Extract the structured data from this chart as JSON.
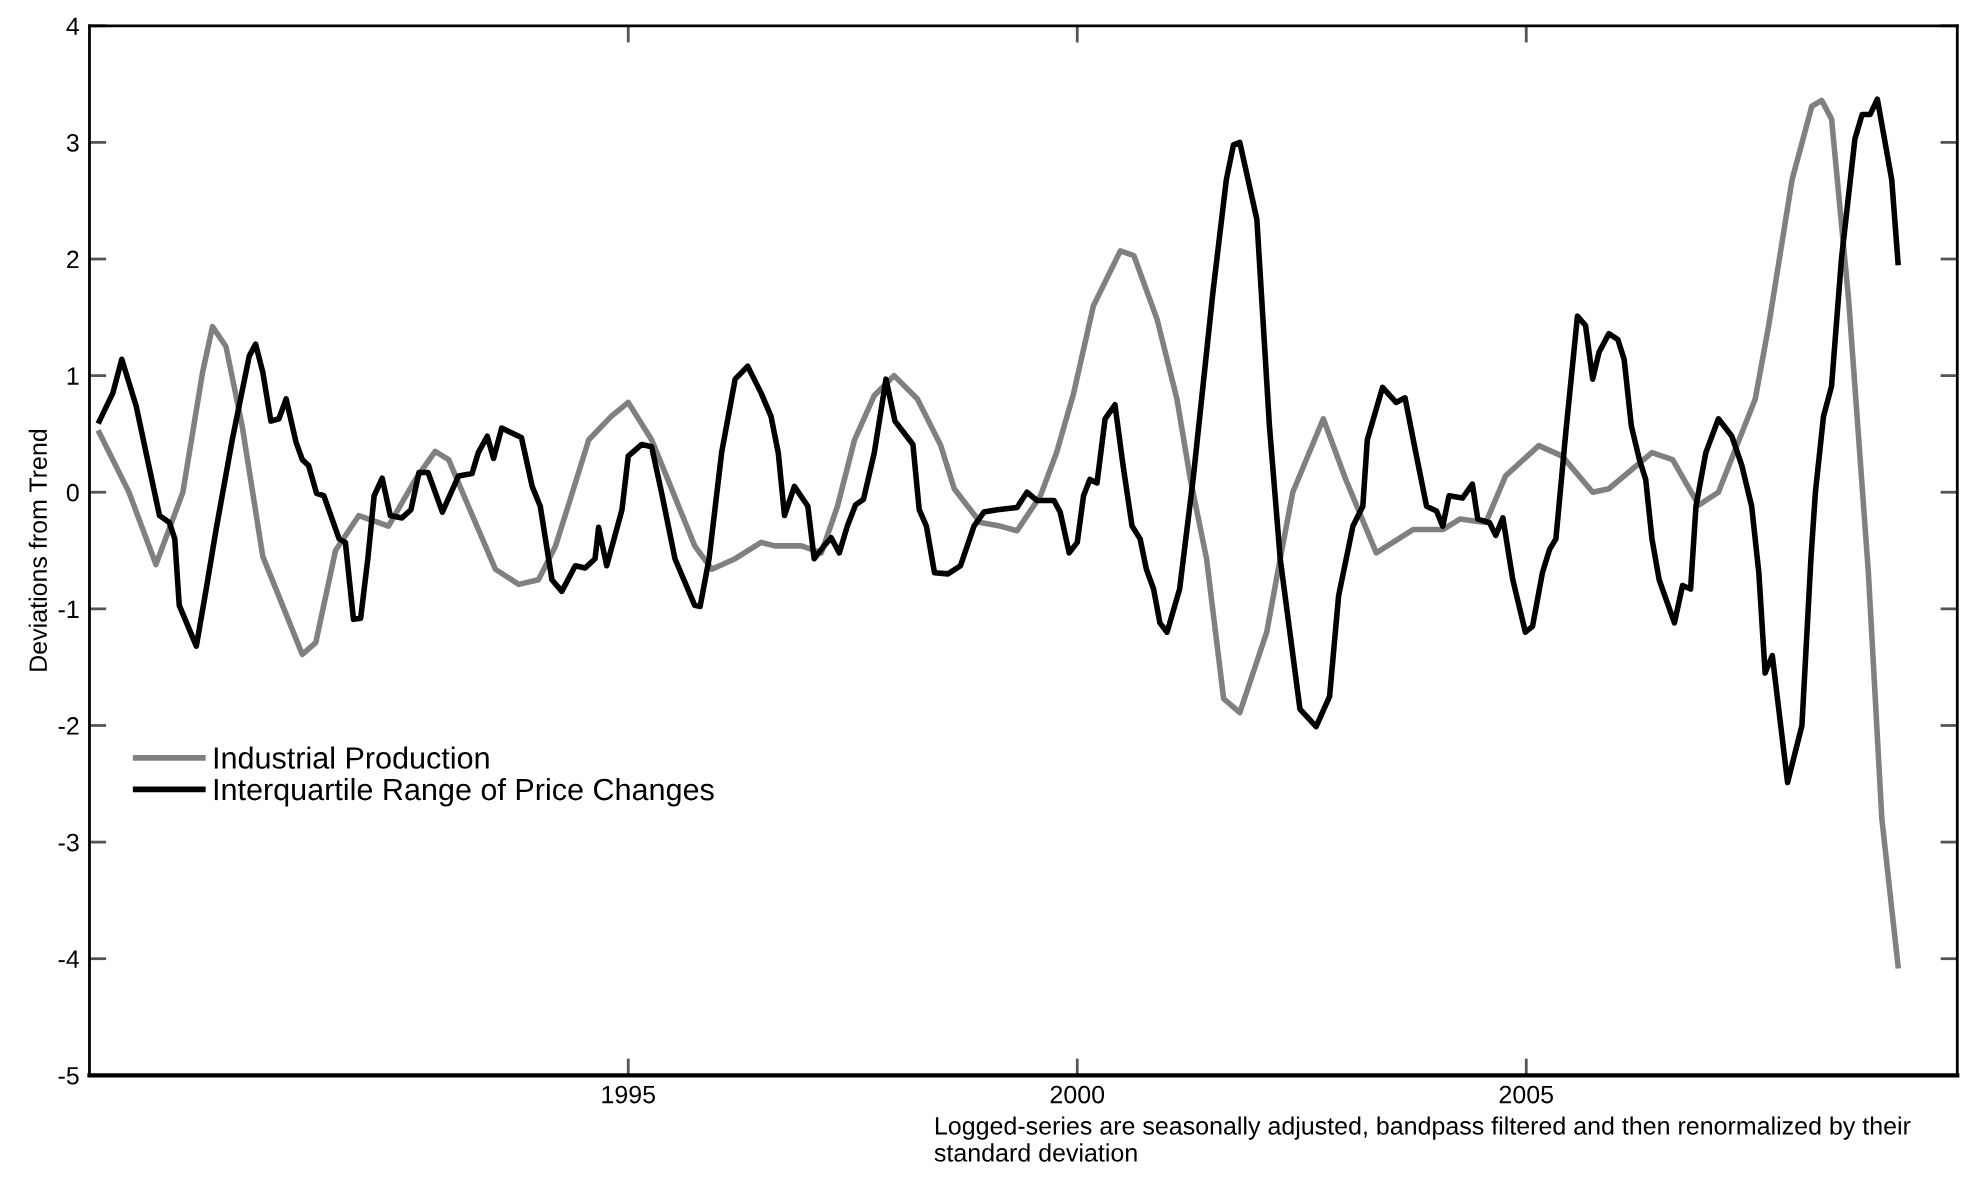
{
  "chart_data": {
    "type": "line",
    "ylabel": "Deviations from Trend",
    "xlim": [
      1989.0,
      2009.8
    ],
    "xticks": [
      1995,
      2000,
      2005
    ],
    "ylim": [
      -5,
      4
    ],
    "yticks": [
      -5,
      -4,
      -3,
      -2,
      -1,
      0,
      1,
      2,
      3,
      4
    ],
    "grid": false,
    "legend": "bottom left",
    "marker": "none",
    "line_style": "solid",
    "annotations": [
      "Logged-series are seasonally adjusted, bandpass filtered and then renormalized by their standard deviation"
    ],
    "series": [
      {
        "name": "Industrial Production",
        "color": "#808080",
        "x": [
          1989.11,
          1989.44,
          1989.74,
          1990.04,
          1990.26,
          1990.37,
          1990.52,
          1990.7,
          1990.93,
          1991.37,
          1991.52,
          1991.74,
          1992.0,
          1992.33,
          1992.63,
          1992.85,
          1993.0,
          1993.22,
          1993.52,
          1993.78,
          1994.0,
          1994.19,
          1994.33,
          1994.56,
          1994.81,
          1995.0,
          1995.26,
          1995.44,
          1995.74,
          1995.93,
          1996.19,
          1996.48,
          1996.63,
          1996.93,
          1997.15,
          1997.33,
          1997.52,
          1997.74,
          1997.96,
          1998.22,
          1998.48,
          1998.63,
          1998.92,
          1999.14,
          1999.33,
          1999.59,
          1999.77,
          1999.96,
          2000.18,
          2000.48,
          2000.63,
          2000.89,
          2001.11,
          2001.26,
          2001.44,
          2001.63,
          2001.81,
          2002.11,
          2002.26,
          2002.4,
          2002.74,
          2002.99,
          2003.33,
          2003.74,
          2004.07,
          2004.26,
          2004.55,
          2004.77,
          2005.14,
          2005.4,
          2005.74,
          2005.92,
          2006.4,
          2006.63,
          2006.92,
          2007.14,
          2007.55,
          2007.7,
          2007.96,
          2008.18,
          2008.29,
          2008.4,
          2008.59,
          2008.81,
          2008.96,
          2009.14
        ],
        "values": [
          0.51,
          0,
          -0.62,
          0,
          1.03,
          1.42,
          1.25,
          0.57,
          -0.55,
          -1.39,
          -1.29,
          -0.5,
          -0.2,
          -0.29,
          0.11,
          0.35,
          0.28,
          -0.12,
          -0.66,
          -0.79,
          -0.75,
          -0.46,
          -0.12,
          0.45,
          0.65,
          0.77,
          0.45,
          0.11,
          -0.46,
          -0.66,
          -0.57,
          -0.43,
          -0.46,
          -0.46,
          -0.52,
          -0.12,
          0.45,
          0.83,
          1.0,
          0.8,
          0.4,
          0.03,
          -0.26,
          -0.29,
          -0.33,
          -0.03,
          0.34,
          0.85,
          1.6,
          2.07,
          2.03,
          1.48,
          0.8,
          0.11,
          -0.57,
          -1.77,
          -1.89,
          -1.2,
          -0.57,
          0,
          0.63,
          0.11,
          -0.52,
          -0.32,
          -0.32,
          -0.23,
          -0.26,
          0.14,
          0.4,
          0.31,
          0,
          0.03,
          0.34,
          0.28,
          -0.11,
          0,
          0.8,
          1.43,
          2.68,
          3.31,
          3.36,
          3.2,
          1.65,
          -0.69,
          -2.8,
          -4.06
        ]
      },
      {
        "name": "Interquartile Range of Price Changes",
        "color": "#000000",
        "x": [
          1989.11,
          1989.26,
          1989.36,
          1989.52,
          1989.63,
          1989.78,
          1989.89,
          1989.95,
          1990.0,
          1990.19,
          1990.3,
          1990.41,
          1990.59,
          1990.78,
          1990.85,
          1990.93,
          1991.02,
          1991.11,
          1991.19,
          1991.3,
          1991.37,
          1991.44,
          1991.53,
          1991.61,
          1991.78,
          1991.85,
          1991.94,
          1992.02,
          1992.1,
          1992.17,
          1992.26,
          1992.35,
          1992.48,
          1992.58,
          1992.67,
          1992.77,
          1992.93,
          1993.11,
          1993.26,
          1993.33,
          1993.43,
          1993.5,
          1993.59,
          1993.81,
          1993.93,
          1994.02,
          1994.15,
          1994.26,
          1994.41,
          1994.52,
          1994.63,
          1994.67,
          1994.76,
          1994.93,
          1995.0,
          1995.15,
          1995.26,
          1995.37,
          1995.52,
          1995.74,
          1995.8,
          1995.9,
          1996.04,
          1996.19,
          1996.33,
          1996.48,
          1996.59,
          1996.67,
          1996.74,
          1996.85,
          1997.0,
          1997.07,
          1997.18,
          1997.26,
          1997.35,
          1997.44,
          1997.53,
          1997.62,
          1997.74,
          1997.87,
          1997.97,
          1998.07,
          1998.17,
          1998.24,
          1998.32,
          1998.41,
          1998.56,
          1998.7,
          1998.85,
          1998.96,
          1999.11,
          1999.33,
          1999.44,
          1999.55,
          1999.74,
          1999.81,
          1999.91,
          2000.0,
          2000.07,
          2000.14,
          2000.22,
          2000.31,
          2000.42,
          2000.51,
          2000.61,
          2000.7,
          2000.77,
          2000.85,
          2000.92,
          2001.0,
          2001.14,
          2001.29,
          2001.51,
          2001.66,
          2001.74,
          2001.81,
          2002.0,
          2002.14,
          2002.26,
          2002.48,
          2002.66,
          2002.81,
          2002.91,
          2003.07,
          2003.18,
          2003.23,
          2003.4,
          2003.55,
          2003.65,
          2003.77,
          2003.89,
          2004.0,
          2004.07,
          2004.14,
          2004.29,
          2004.4,
          2004.46,
          2004.59,
          2004.66,
          2004.74,
          2004.85,
          2004.99,
          2005.07,
          2005.18,
          2005.26,
          2005.33,
          2005.44,
          2005.57,
          2005.66,
          2005.74,
          2005.81,
          2005.92,
          2006.02,
          2006.09,
          2006.17,
          2006.26,
          2006.33,
          2006.4,
          2006.48,
          2006.65,
          2006.74,
          2006.83,
          2006.89,
          2007.0,
          2007.14,
          2007.29,
          2007.4,
          2007.51,
          2007.59,
          2007.66,
          2007.74,
          2007.91,
          2008.07,
          2008.17,
          2008.22,
          2008.31,
          2008.4,
          2008.51,
          2008.66,
          2008.74,
          2008.83,
          2008.91,
          2009.07,
          2009.14
        ],
        "values": [
          0.61,
          0.85,
          1.14,
          0.74,
          0.34,
          -0.2,
          -0.26,
          -0.4,
          -0.97,
          -1.32,
          -0.83,
          -0.32,
          0.45,
          1.17,
          1.27,
          1.03,
          0.61,
          0.63,
          0.8,
          0.43,
          0.28,
          0.23,
          -0.01,
          -0.03,
          -0.4,
          -0.43,
          -1.09,
          -1.08,
          -0.57,
          -0.03,
          0.12,
          -0.2,
          -0.22,
          -0.15,
          0.17,
          0.17,
          -0.17,
          0.14,
          0.16,
          0.34,
          0.48,
          0.29,
          0.55,
          0.47,
          0.05,
          -0.12,
          -0.75,
          -0.85,
          -0.63,
          -0.65,
          -0.57,
          -0.3,
          -0.63,
          -0.15,
          0.31,
          0.41,
          0.39,
          0,
          -0.57,
          -0.97,
          -0.98,
          -0.57,
          0.34,
          0.97,
          1.08,
          0.85,
          0.65,
          0.34,
          -0.2,
          0.05,
          -0.12,
          -0.57,
          -0.46,
          -0.39,
          -0.52,
          -0.29,
          -0.11,
          -0.06,
          0.34,
          0.97,
          0.61,
          0.51,
          0.41,
          -0.15,
          -0.29,
          -0.69,
          -0.7,
          -0.63,
          -0.29,
          -0.17,
          -0.15,
          -0.13,
          0,
          -0.07,
          -0.07,
          -0.17,
          -0.52,
          -0.43,
          -0.03,
          0.11,
          0.08,
          0.63,
          0.75,
          0.23,
          -0.29,
          -0.4,
          -0.66,
          -0.83,
          -1.12,
          -1.2,
          -0.83,
          0.11,
          1.71,
          2.68,
          2.98,
          3.0,
          2.34,
          0.57,
          -0.57,
          -1.86,
          -2.01,
          -1.75,
          -0.89,
          -0.29,
          -0.12,
          0.45,
          0.9,
          0.77,
          0.81,
          0.34,
          -0.12,
          -0.16,
          -0.29,
          -0.03,
          -0.05,
          0.07,
          -0.23,
          -0.26,
          -0.37,
          -0.22,
          -0.75,
          -1.2,
          -1.15,
          -0.69,
          -0.49,
          -0.4,
          0.51,
          1.51,
          1.43,
          0.97,
          1.2,
          1.36,
          1.31,
          1.14,
          0.57,
          0.28,
          0.11,
          -0.4,
          -0.75,
          -1.12,
          -0.8,
          -0.83,
          -0.12,
          0.34,
          0.63,
          0.48,
          0.23,
          -0.12,
          -0.69,
          -1.55,
          -1.4,
          -2.49,
          -2.0,
          -0.57,
          0,
          0.65,
          0.91,
          2.0,
          3.03,
          3.24,
          3.24,
          3.37,
          2.68,
          1.97
        ]
      }
    ]
  }
}
